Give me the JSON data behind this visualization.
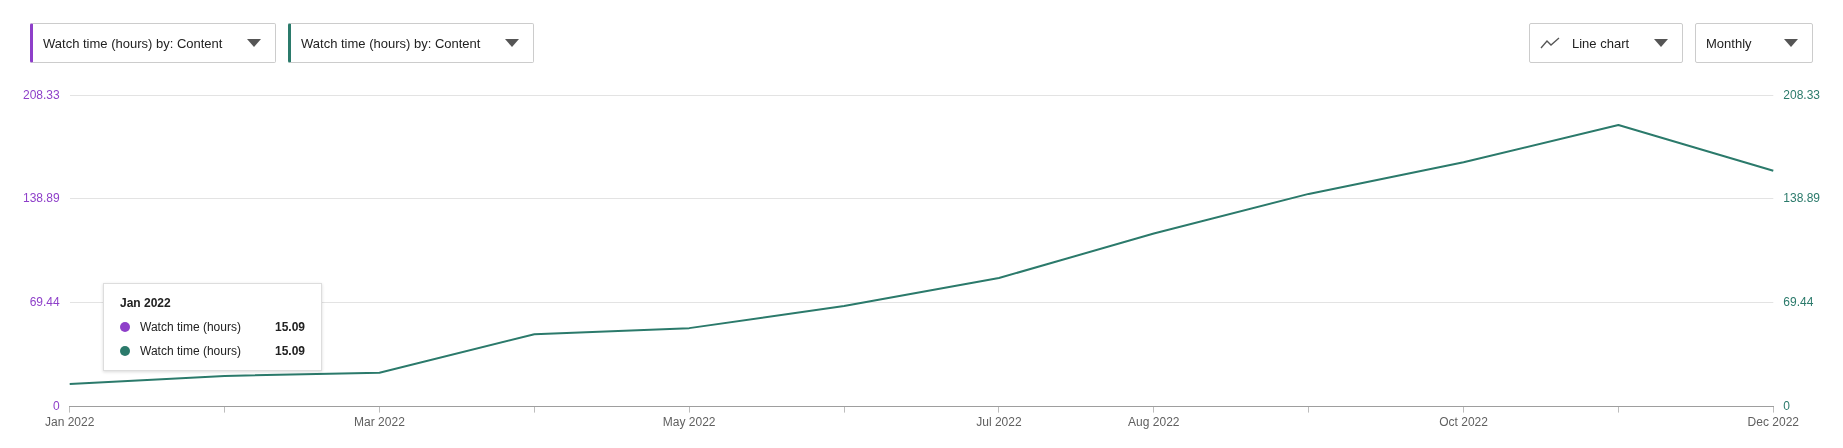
{
  "chart_data": {
    "type": "line",
    "annotations": [
      "Watch time (hours) by: Content",
      "Watch time (hours) by: Content",
      "Line chart",
      "Monthly",
      "15.09",
      "15.09"
    ],
    "categories": [
      "Jan 2022",
      null,
      "Mar 2022",
      null,
      "May 2022",
      null,
      "Jul 2022",
      "Aug 2022",
      null,
      "Oct 2022",
      null,
      "Dec 2022"
    ],
    "series": [
      {
        "name": "Watch time (hours)",
        "color": "#8e3fc9",
        "values": [
          null,
          null,
          null,
          null,
          null,
          null,
          null,
          null,
          null,
          null,
          null,
          null
        ]
      },
      {
        "name": "Watch time (hours)",
        "color": "#2b7a6b",
        "axis": "y2",
        "values": [
          15.09,
          20.5,
          22.6,
          48.4,
          52.5,
          67.3,
          86.0,
          115.8,
          142.3,
          163.5,
          188.4,
          157.8
        ]
      }
    ],
    "legend_title": "Jan 2022",
    "legend": "bottom left",
    "ylim": [
      0,
      208.33
    ],
    "yticks": [
      0,
      69.44,
      138.89,
      208.33
    ],
    "y2lim": [
      0,
      208.33
    ],
    "y2ticks": [
      0,
      69.44,
      138.89,
      208.33
    ],
    "grid": "y",
    "marker": "none",
    "line_style": "solid"
  }
}
